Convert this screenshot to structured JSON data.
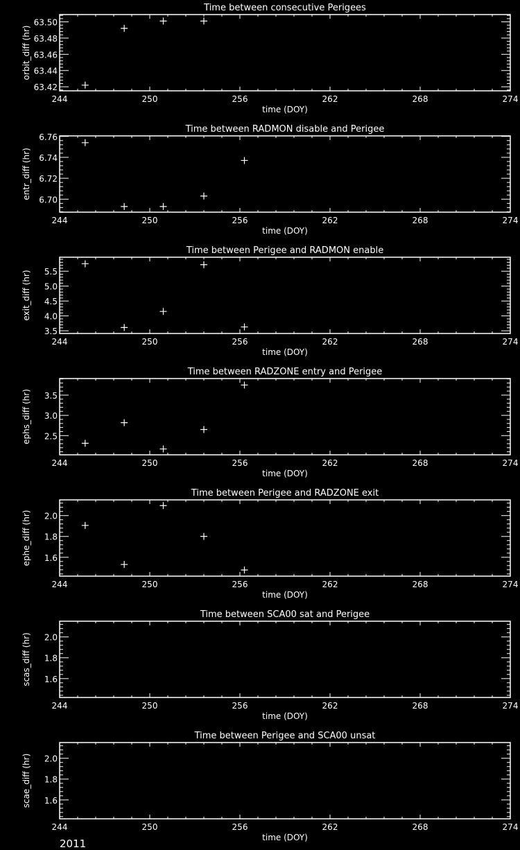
{
  "chart_data": [
    {
      "type": "scatter",
      "title": "Time between consecutive Perigees",
      "xlabel": "time (DOY)",
      "ylabel": "orbit_diff (hr)",
      "xlim": [
        244,
        274
      ],
      "xticks": [
        "244",
        "250",
        "256",
        "262",
        "268",
        "274"
      ],
      "ylim": [
        63.415,
        63.509
      ],
      "yticks": [
        "63.42",
        "63.44",
        "63.46",
        "63.48",
        "63.50"
      ],
      "x": [
        245.7,
        248.3,
        250.9,
        253.6
      ],
      "y": [
        63.422,
        63.492,
        63.501,
        63.501
      ]
    },
    {
      "type": "scatter",
      "title": "Time between RADMON disable and Perigee",
      "xlabel": "time (DOY)",
      "ylabel": "entr_diff (hr)",
      "xlim": [
        244,
        274
      ],
      "xticks": [
        "244",
        "250",
        "256",
        "262",
        "268",
        "274"
      ],
      "ylim": [
        6.6876,
        6.7605
      ],
      "yticks": [
        "6.70",
        "6.72",
        "6.74",
        "6.76"
      ],
      "x": [
        245.7,
        248.3,
        250.9,
        253.6,
        256.3
      ],
      "y": [
        6.754,
        6.693,
        6.693,
        6.703,
        6.737
      ]
    },
    {
      "type": "scatter",
      "title": "Time between Perigee and RADMON enable",
      "xlabel": "time (DOY)",
      "ylabel": "exit_diff (hr)",
      "xlim": [
        244,
        274
      ],
      "xticks": [
        "244",
        "250",
        "256",
        "262",
        "268",
        "274"
      ],
      "ylim": [
        3.41,
        5.97
      ],
      "yticks": [
        "3.5",
        "4.0",
        "4.5",
        "5.0",
        "5.5"
      ],
      "x": [
        245.7,
        248.3,
        250.9,
        253.6,
        256.3
      ],
      "y": [
        5.75,
        3.61,
        4.15,
        5.72,
        3.63
      ]
    },
    {
      "type": "scatter",
      "title": "Time between RADZONE entry and Perigee",
      "xlabel": "time (DOY)",
      "ylabel": "ephs_diff (hr)",
      "xlim": [
        244,
        274
      ],
      "xticks": [
        "244",
        "250",
        "256",
        "262",
        "268",
        "274"
      ],
      "ylim": [
        2.025,
        3.91
      ],
      "yticks": [
        "2.5",
        "3.0",
        "3.5"
      ],
      "x": [
        245.7,
        248.3,
        250.9,
        253.6,
        256.3
      ],
      "y": [
        2.31,
        2.82,
        2.17,
        2.65,
        3.75
      ]
    },
    {
      "type": "scatter",
      "title": "Time between Perigee and RADZONE exit",
      "xlabel": "time (DOY)",
      "ylabel": "ephe_diff (hr)",
      "xlim": [
        244,
        274
      ],
      "xticks": [
        "244",
        "250",
        "256",
        "262",
        "268",
        "274"
      ],
      "ylim": [
        1.419,
        2.151
      ],
      "yticks": [
        "1.6",
        "1.8",
        "2.0"
      ],
      "x": [
        245.7,
        248.3,
        250.9,
        253.6,
        256.3
      ],
      "y": [
        1.906,
        1.531,
        2.096,
        1.801,
        1.478
      ]
    },
    {
      "type": "scatter",
      "title": "Time between SCA00 sat and Perigee",
      "xlabel": "time (DOY)",
      "ylabel": "scas_diff (hr)",
      "xlim": [
        244,
        274
      ],
      "xticks": [
        "244",
        "250",
        "256",
        "262",
        "268",
        "274"
      ],
      "ylim": [
        1.419,
        2.151
      ],
      "yticks": [
        "1.6",
        "1.8",
        "2.0"
      ],
      "x": [],
      "y": []
    },
    {
      "type": "scatter",
      "title": "Time between Perigee and SCA00 unsat",
      "xlabel": "time (DOY)",
      "ylabel": "scae_diff (hr)",
      "xlim": [
        244,
        274
      ],
      "xticks": [
        "244",
        "250",
        "256",
        "262",
        "268",
        "274"
      ],
      "ylim": [
        1.419,
        2.151
      ],
      "yticks": [
        "1.6",
        "1.8",
        "2.0"
      ],
      "x": [],
      "y": []
    }
  ],
  "footer": {
    "year": "2011"
  },
  "colors": {
    "background": "#000000",
    "foreground": "#ffffff"
  }
}
